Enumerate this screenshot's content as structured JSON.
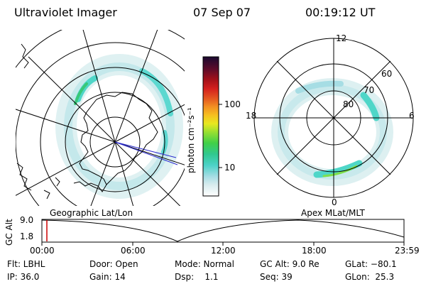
{
  "header": {
    "title": "Ultraviolet Imager",
    "date": "07 Sep 07",
    "time": "00:19:12 UT"
  },
  "colorbar": {
    "unit_label": "photon cm⁻²s⁻¹",
    "ticks": [
      "100",
      "10"
    ]
  },
  "apex_map": {
    "mlat_labels": [
      "80",
      "70",
      "60"
    ],
    "mlt_labels": [
      "12",
      "18",
      "6",
      "0"
    ]
  },
  "timeline": {
    "left_caption": "Geographic Lat/Lon",
    "right_caption": "Apex MLat/MLT",
    "axis_label": "GC Alt",
    "y_ticks": [
      "9.0",
      "1.8"
    ],
    "x_ticks": [
      "00:00",
      "06:00",
      "12:00",
      "18:00",
      "23:59"
    ]
  },
  "info": {
    "row1": [
      "Flt: LBHL",
      "Door: Open",
      "Mode: Normal",
      "GC Alt: 9.0 Re",
      "GLat: −80.1"
    ],
    "row2": [
      "IP: 36.0",
      "Gain: 14",
      "Dsp:    1.1",
      "Seq: 39",
      "GLon:  25.3"
    ]
  },
  "colors": {
    "aurora_low": "#cfe8ea",
    "aurora_mid": "#4fd6c8",
    "aurora_high": "#38c878",
    "aurora_peak": "#7ee04c",
    "marker": "#cc0000",
    "line": "#000000",
    "blue_line": "#2a2ad0"
  }
}
